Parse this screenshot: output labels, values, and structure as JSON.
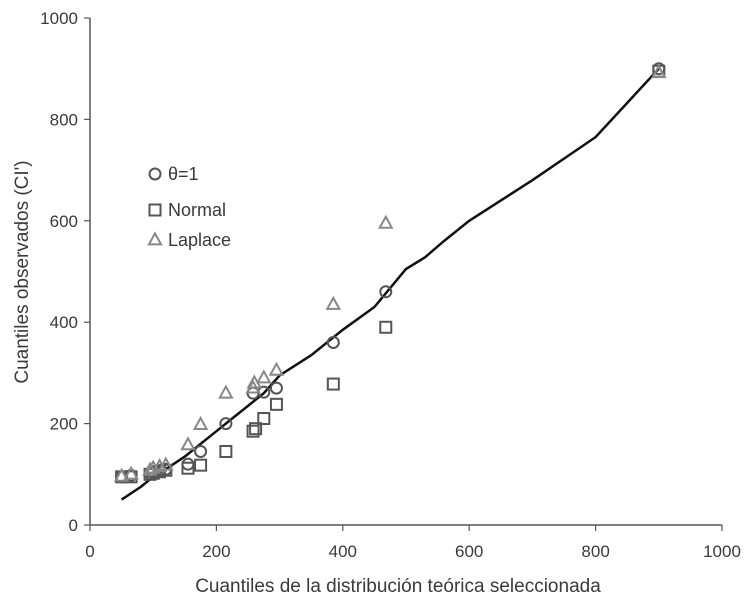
{
  "chart_data": {
    "type": "scatter",
    "xlabel": "Cuantiles de la distribución teórica seleccionada",
    "ylabel": "Cuantiles observados (CI')",
    "xlim": [
      0,
      1000
    ],
    "ylim": [
      0,
      1000
    ],
    "xticks": [
      "0",
      "200",
      "400",
      "600",
      "800",
      "1000"
    ],
    "yticks": [
      "0",
      "200",
      "400",
      "600",
      "800",
      "1000"
    ],
    "grid": false,
    "legend_position": "upper-left",
    "series": [
      {
        "name": "θ=1",
        "marker": "circle",
        "color": "#555555",
        "points": [
          [
            50,
            95
          ],
          [
            65,
            98
          ],
          [
            95,
            102
          ],
          [
            100,
            105
          ],
          [
            110,
            107
          ],
          [
            120,
            110
          ],
          [
            155,
            120
          ],
          [
            175,
            145
          ],
          [
            215,
            200
          ],
          [
            258,
            260
          ],
          [
            275,
            262
          ],
          [
            295,
            270
          ],
          [
            385,
            360
          ],
          [
            468,
            460
          ],
          [
            900,
            900
          ]
        ]
      },
      {
        "name": "Normal",
        "marker": "square",
        "color": "#555555",
        "points": [
          [
            50,
            95
          ],
          [
            65,
            95
          ],
          [
            95,
            100
          ],
          [
            100,
            102
          ],
          [
            110,
            105
          ],
          [
            120,
            108
          ],
          [
            155,
            112
          ],
          [
            175,
            118
          ],
          [
            215,
            145
          ],
          [
            258,
            185
          ],
          [
            262,
            190
          ],
          [
            275,
            210
          ],
          [
            295,
            238
          ],
          [
            385,
            278
          ],
          [
            468,
            390
          ],
          [
            900,
            895
          ]
        ]
      },
      {
        "name": "Laplace",
        "marker": "triangle",
        "color": "#888888",
        "points": [
          [
            50,
            96
          ],
          [
            65,
            100
          ],
          [
            95,
            108
          ],
          [
            100,
            112
          ],
          [
            110,
            115
          ],
          [
            120,
            118
          ],
          [
            155,
            158
          ],
          [
            175,
            198
          ],
          [
            215,
            260
          ],
          [
            258,
            270
          ],
          [
            260,
            280
          ],
          [
            275,
            290
          ],
          [
            295,
            305
          ],
          [
            385,
            435
          ],
          [
            468,
            595
          ],
          [
            900,
            892
          ]
        ]
      }
    ],
    "reference_line": {
      "color": "#111111",
      "points": [
        [
          50,
          50
        ],
        [
          80,
          75
        ],
        [
          100,
          95
        ],
        [
          120,
          110
        ],
        [
          150,
          135
        ],
        [
          175,
          160
        ],
        [
          200,
          185
        ],
        [
          225,
          210
        ],
        [
          250,
          235
        ],
        [
          275,
          260
        ],
        [
          300,
          295
        ],
        [
          350,
          335
        ],
        [
          400,
          385
        ],
        [
          450,
          430
        ],
        [
          500,
          505
        ],
        [
          530,
          528
        ],
        [
          560,
          560
        ],
        [
          600,
          600
        ],
        [
          700,
          680
        ],
        [
          800,
          765
        ],
        [
          900,
          900
        ]
      ]
    }
  }
}
